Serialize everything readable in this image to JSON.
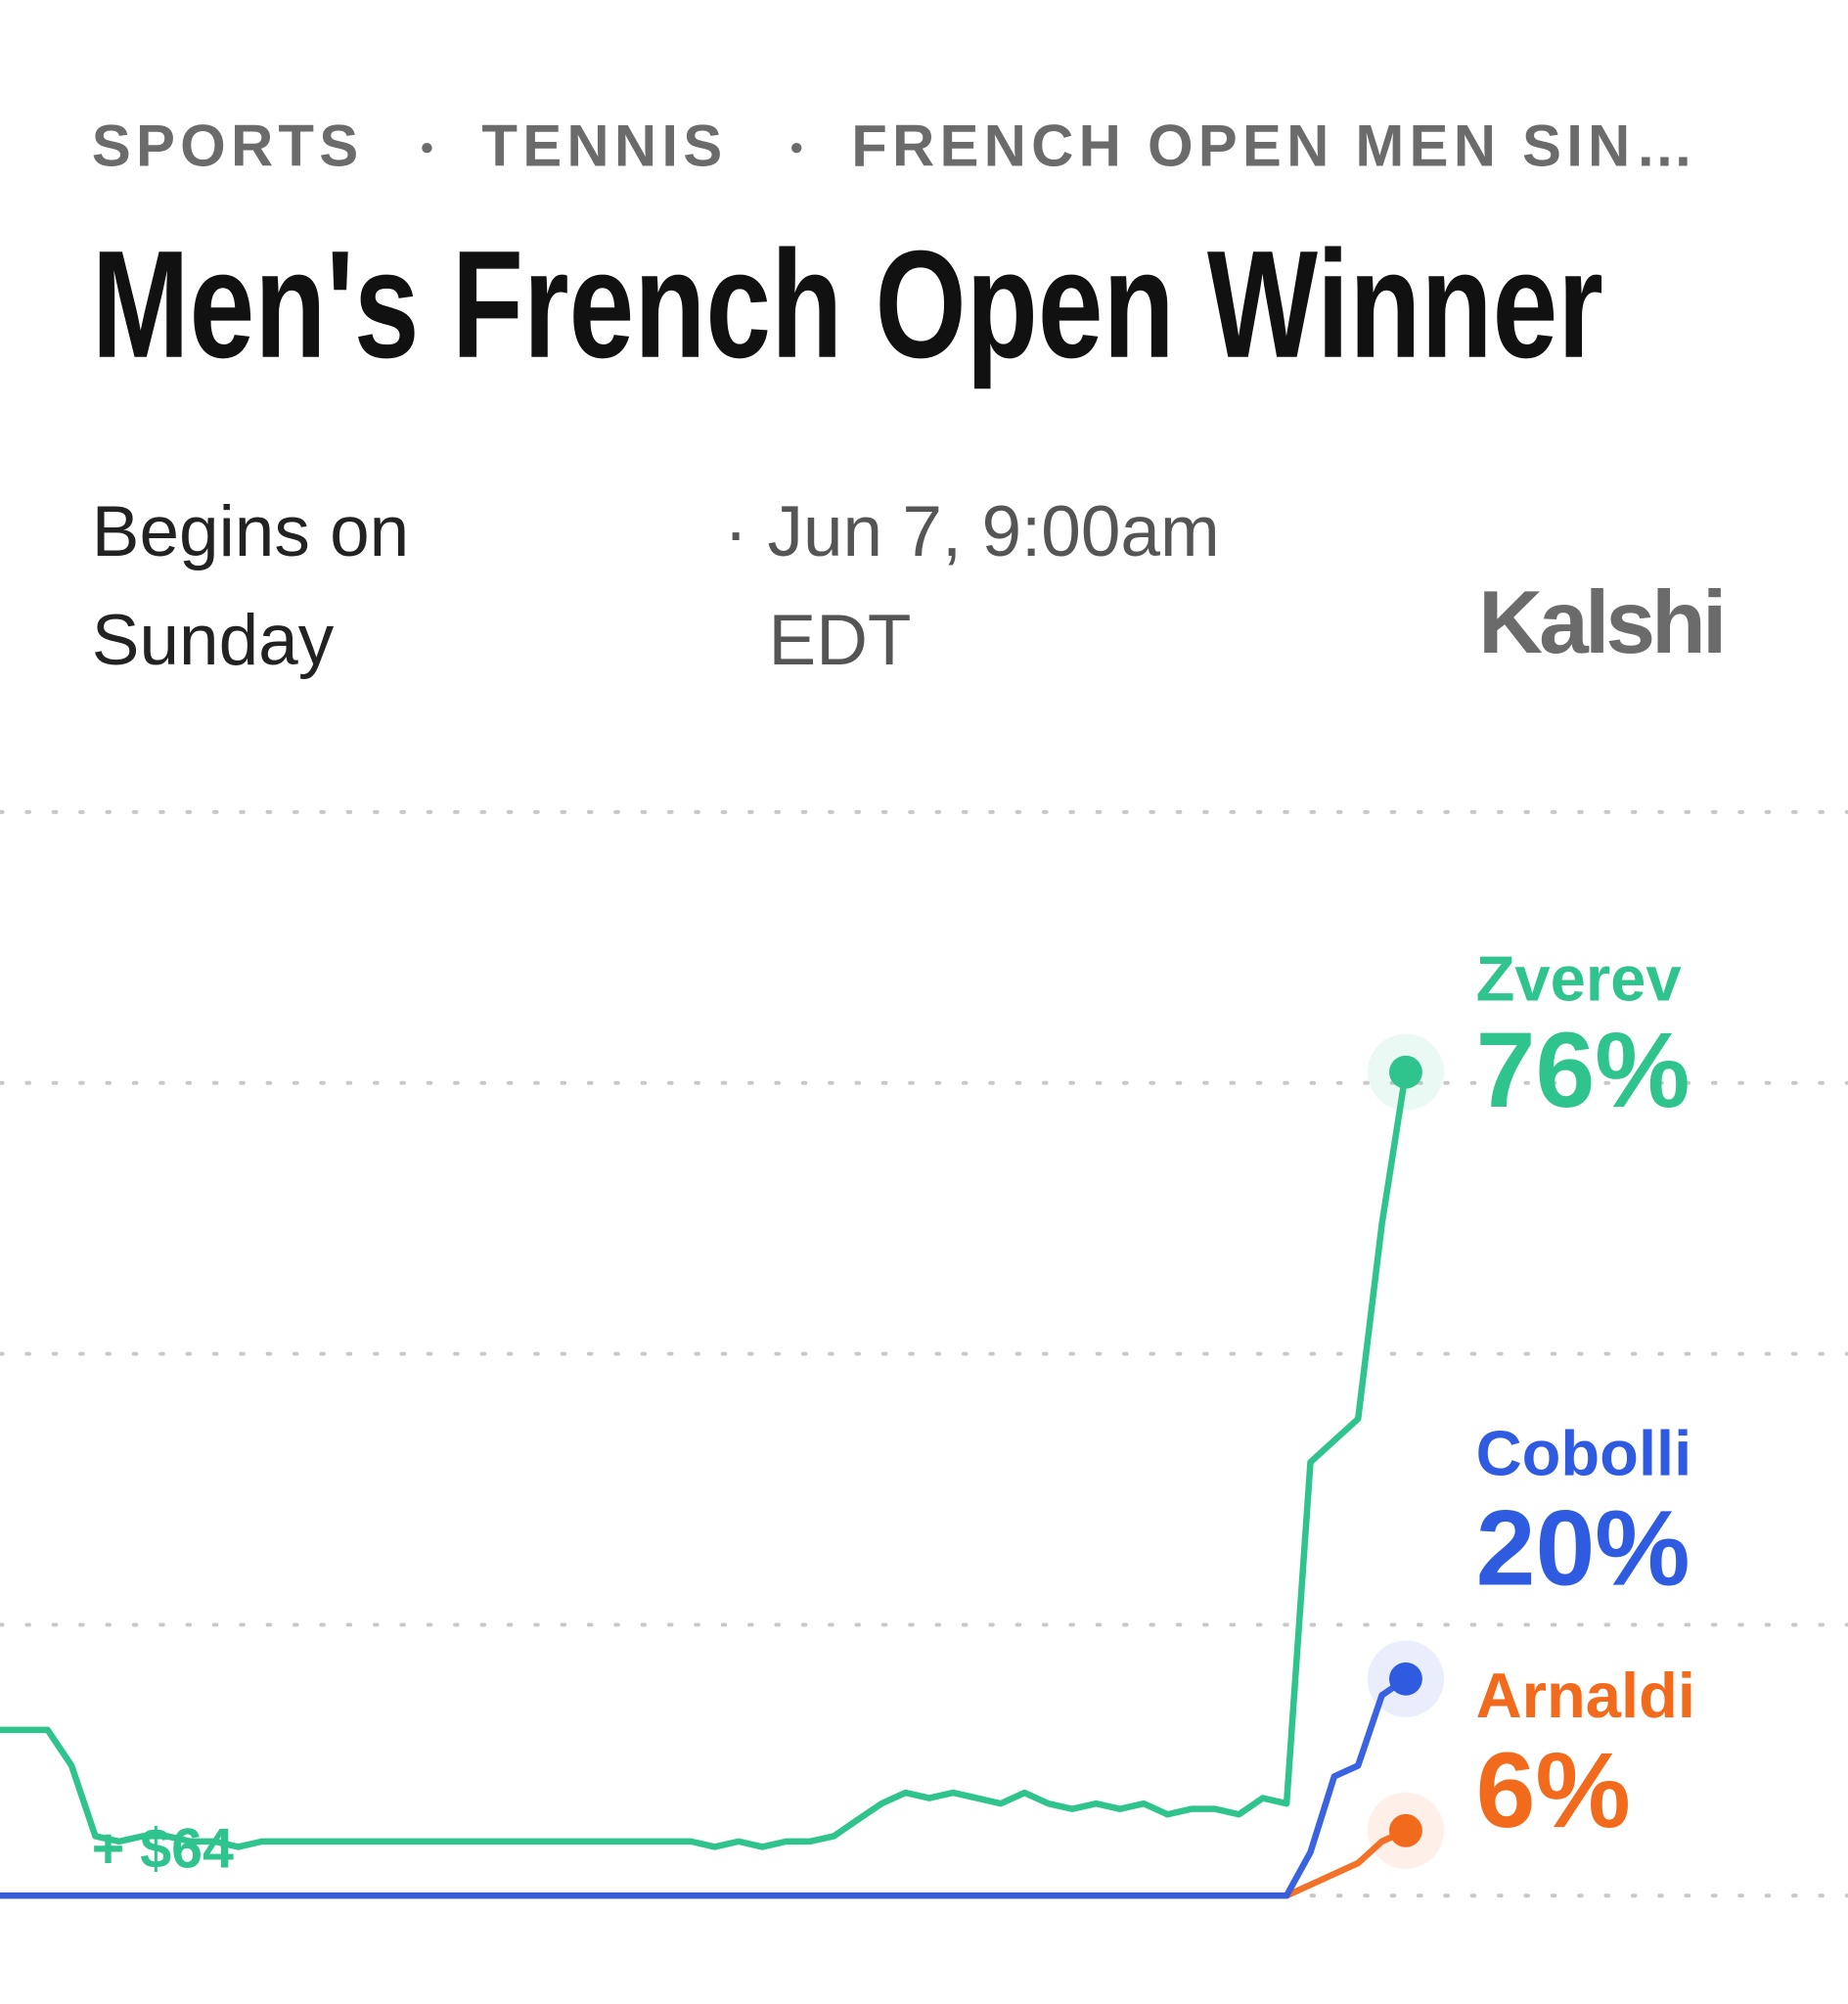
{
  "header": {
    "breadcrumb": [
      "SPORTS",
      "TENNIS",
      "FRENCH OPEN MEN SIN…"
    ],
    "title": "Men's French Open Winner",
    "begins_line1": "Begins on",
    "begins_line2": "Sunday",
    "date_line1": "· Jun 7, 9:00am",
    "date_line2": "EDT",
    "brand": "Kalshi"
  },
  "chart_data": {
    "type": "line",
    "annotation": "+ $64",
    "ylim": [
      0,
      100
    ],
    "yticks": [
      0,
      25,
      50,
      75,
      100
    ],
    "grid": true,
    "series": [
      {
        "name": "Zverev",
        "color": "#2fc48d",
        "value_labels": [
          "76%"
        ],
        "values": [
          15.3,
          15.3,
          15.3,
          12,
          5.5,
          5,
          5.5,
          5.5,
          5,
          5,
          4.5,
          5,
          5,
          5,
          5,
          5,
          5,
          5,
          5,
          5,
          5,
          5,
          5,
          5,
          5,
          5,
          5,
          5,
          5,
          5,
          4.5,
          5,
          4.5,
          5,
          5,
          5.5,
          7,
          8.5,
          9.5,
          9,
          9.5,
          9,
          8.5,
          9.5,
          8.5,
          8,
          8.5,
          8,
          8.5,
          7.5,
          8,
          8,
          7.5,
          9,
          8.5,
          40,
          42,
          44,
          62,
          76
        ]
      },
      {
        "name": "Cobolli",
        "color": "#2f5be0",
        "value_labels": [
          "20%"
        ],
        "values": [
          0,
          0,
          0,
          0,
          0,
          0,
          0,
          0,
          0,
          0,
          0,
          0,
          0,
          0,
          0,
          0,
          0,
          0,
          0,
          0,
          0,
          0,
          0,
          0,
          0,
          0,
          0,
          0,
          0,
          0,
          0,
          0,
          0,
          0,
          0,
          0,
          0,
          0,
          0,
          0,
          0,
          0,
          0,
          0,
          0,
          0,
          0,
          0,
          0,
          0,
          0,
          0,
          0,
          0,
          0,
          4,
          11,
          12,
          18.5,
          20
        ]
      },
      {
        "name": "Arnaldi",
        "color": "#f26a1b",
        "value_labels": [
          "6%"
        ],
        "values": [
          0,
          0,
          0,
          0,
          0,
          0,
          0,
          0,
          0,
          0,
          0,
          0,
          0,
          0,
          0,
          0,
          0,
          0,
          0,
          0,
          0,
          0,
          0,
          0,
          0,
          0,
          0,
          0,
          0,
          0,
          0,
          0,
          0,
          0,
          0,
          0,
          0,
          0,
          0,
          0,
          0,
          0,
          0,
          0,
          0,
          0,
          0,
          0,
          0,
          0,
          0,
          0,
          0,
          0,
          0,
          1,
          2,
          3,
          5,
          6
        ]
      }
    ]
  }
}
